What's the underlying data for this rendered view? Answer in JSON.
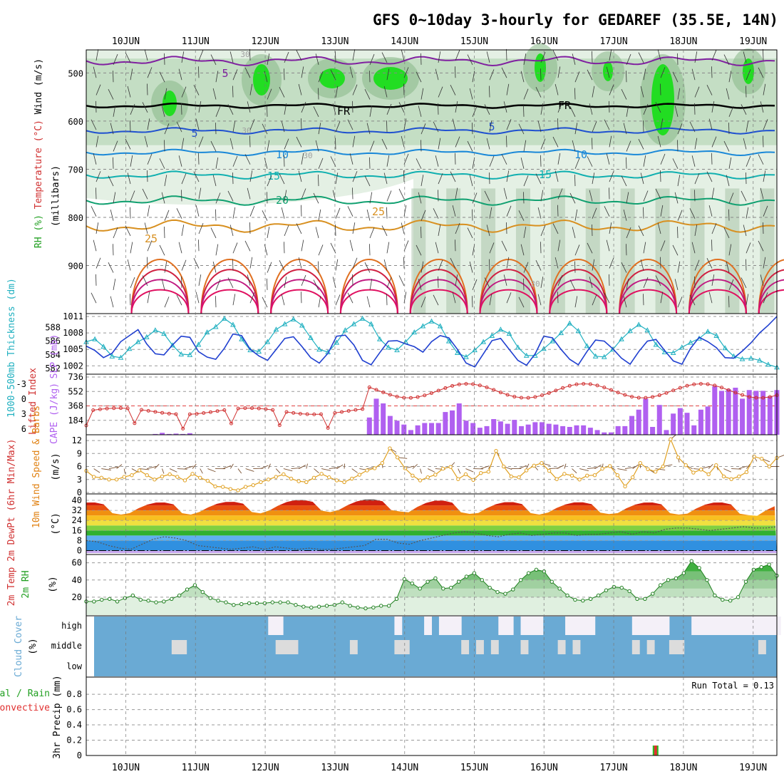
{
  "chart_data": {
    "type": "meteogram",
    "title": "GFS 0~10day 3-hourly for GEDAREF (35.5E, 14N)",
    "dates": [
      "10JUN",
      "11JUN",
      "12JUN",
      "13JUN",
      "14JUN",
      "15JUN",
      "16JUN",
      "17JUN",
      "18JUN",
      "19JUN"
    ],
    "colors": {
      "rh_green": "#22c022",
      "temp_red": "#d03030",
      "wind_purple": "#7a1fa0",
      "slp_blue": "#1f3fd0",
      "thick_cyan": "#20b0c0",
      "cape_violet": "#b060f0",
      "wind_orange": "#e0a020",
      "cloud_blue": "#6aaad4",
      "precip_green": "#22c022",
      "precip_red": "#e03030"
    },
    "upper": {
      "ylabel_rh": "RH (%)",
      "ylabel_temp": "Temperature (°C)",
      "ylabel_wind": "Wind (m/s)",
      "ylabel_p": "(millibars)",
      "p_ticks": [
        500,
        600,
        700,
        800,
        900
      ],
      "p_range": [
        452,
        1000
      ],
      "contour_labels": [
        {
          "t": "5",
          "c": "#8020a0"
        },
        {
          "t": "FR",
          "c": "#000000"
        },
        {
          "t": "FR",
          "c": "#000000"
        },
        {
          "t": "5",
          "c": "#1f50d0"
        },
        {
          "t": "5",
          "c": "#1f50d0"
        },
        {
          "t": "10",
          "c": "#1a88d8"
        },
        {
          "t": "10",
          "c": "#1a88d8"
        },
        {
          "t": "15",
          "c": "#10b0b0"
        },
        {
          "t": "15",
          "c": "#10b0b0"
        },
        {
          "t": "20",
          "c": "#10a070"
        },
        {
          "t": "25",
          "c": "#d89020"
        },
        {
          "t": "25",
          "c": "#d89020"
        },
        {
          "t": "30",
          "c": "#a0a0a0"
        },
        {
          "t": "30",
          "c": "#a0a0a0"
        },
        {
          "t": "30",
          "c": "#a0a0a0"
        },
        {
          "t": "30",
          "c": "#a0a0a0"
        }
      ]
    },
    "slp_panel": {
      "ylabel_thick": "1000-500mb Thickness (dm)",
      "ylabel_slp": "SLP (mb)",
      "left_ticks": [
        582,
        584,
        586,
        588
      ],
      "right_ticks": [
        1002,
        1005,
        1008,
        1011
      ],
      "slp_range": [
        1001,
        1011
      ],
      "slp": [
        1005.6,
        1004.8,
        1003.5,
        1004.3,
        1006.4,
        1007.5,
        1008.6,
        1006.0,
        1004.2,
        1004.0,
        1005.8,
        1007.4,
        1007.2,
        1004.6,
        1003.6,
        1003.2,
        1005.2,
        1007.8,
        1007.5,
        1005.0,
        1003.8,
        1003.0,
        1005.0,
        1007.0,
        1007.3,
        1005.5,
        1003.5,
        1002.5,
        1004.3,
        1007.4,
        1007.6,
        1005.8,
        1003.0,
        1002.2,
        1004.4,
        1006.5,
        1006.6,
        1006.0,
        1005.5,
        1004.5,
        1006.4,
        1007.5,
        1007.1,
        1005.0,
        1002.5,
        1001.8,
        1004.2,
        1006.6,
        1007.0,
        1005.0,
        1003.0,
        1002.1,
        1004.2,
        1007.4,
        1007.1,
        1005.0,
        1003.2,
        1002.2,
        1004.6,
        1006.7,
        1006.5,
        1005.1,
        1003.4,
        1002.3,
        1004.6,
        1006.5,
        1006.8,
        1004.8,
        1002.9,
        1002.3,
        1005.2,
        1007.2,
        1006.4,
        1005.3,
        1003.5,
        1003.4,
        1004.7,
        1006.2,
        1008.0,
        1009.4,
        1011.0
      ],
      "thick_dm": [
        585.9,
        586.3,
        585.2,
        583.8,
        583.6,
        584.9,
        585.9,
        586.6,
        587.6,
        587.1,
        585.4,
        584.1,
        584.0,
        585.5,
        587.3,
        588.1,
        589.3,
        588.4,
        586.3,
        584.7,
        584.5,
        585.9,
        587.7,
        588.5,
        589.2,
        588.3,
        586.5,
        584.8,
        584.4,
        585.8,
        587.6,
        588.5,
        589.3,
        588.5,
        586.3,
        585.1,
        584.7,
        585.9,
        587.3,
        588.2,
        588.9,
        588.2,
        586.0,
        584.3,
        583.7,
        584.7,
        585.9,
        586.8,
        587.7,
        587.1,
        585.1,
        583.9,
        583.9,
        584.9,
        586.0,
        587.2,
        588.6,
        587.5,
        585.3,
        583.8,
        583.7,
        584.8,
        586.3,
        587.5,
        588.4,
        587.6,
        585.5,
        584.4,
        584.3,
        585.1,
        585.8,
        586.4,
        587.4,
        586.8,
        585.0,
        583.8,
        583.4,
        583.5,
        583.2,
        582.6,
        582.2
      ]
    },
    "cape_panel": {
      "ylabel_li": "Lifted Index",
      "ylabel_cape": "CAPE (J/kg)",
      "left_ticks": [
        "-3",
        "0",
        "3",
        "6"
      ],
      "right_ticks": [
        184,
        368,
        552,
        736
      ],
      "cape": [
        0,
        0,
        0,
        0,
        0,
        0,
        0,
        0,
        0,
        0,
        10,
        25,
        10,
        15,
        10,
        20,
        0,
        0,
        0,
        0,
        0,
        0,
        0,
        0,
        0,
        0,
        0,
        0,
        0,
        0,
        0,
        0,
        0,
        0,
        0,
        0,
        0,
        0,
        0,
        0,
        0,
        220,
        460,
        400,
        240,
        180,
        130,
        60,
        120,
        150,
        150,
        150,
        290,
        310,
        400,
        180,
        150,
        90,
        110,
        200,
        170,
        140,
        190,
        110,
        130,
        160,
        160,
        140,
        130,
        110,
        100,
        120,
        120,
        90,
        60,
        30,
        30,
        110,
        110,
        240,
        320,
        460,
        100,
        380,
        60,
        270,
        340,
        280,
        120,
        320,
        360,
        620,
        560,
        580,
        600,
        460,
        570,
        560,
        560,
        490,
        570
      ]
    },
    "wind10_panel": {
      "ylabel": "10m Wind Speed & Barbs",
      "unit": "(m/s)",
      "ticks": [
        0,
        3,
        6,
        9,
        12
      ],
      "speed": [
        5.0,
        3.6,
        3.4,
        3.0,
        3.0,
        3.6,
        4.0,
        5.1,
        4.0,
        3.0,
        3.7,
        4.2,
        3.6,
        2.8,
        4.3,
        3.4,
        2.7,
        1.4,
        1.3,
        0.8,
        0.5,
        1.3,
        1.7,
        2.4,
        3.0,
        3.6,
        4.2,
        3.2,
        2.6,
        2.4,
        3.4,
        4.3,
        3.5,
        2.8,
        2.4,
        3.2,
        4.1,
        5.1,
        5.6,
        6.8,
        10.2,
        8.1,
        5.6,
        3.9,
        2.8,
        3.5,
        4.1,
        5.5,
        5.9,
        3.1,
        4.2,
        2.9,
        4.5,
        4.8,
        9.6,
        6.0,
        3.7,
        3.5,
        5.1,
        6.2,
        6.8,
        5.0,
        3.1,
        4.3,
        3.9,
        3.0,
        3.9,
        4.0,
        5.5,
        6.1,
        4.0,
        1.4,
        3.5,
        6.8,
        5.4,
        4.8,
        6.0,
        12.3,
        8.1,
        6.3,
        4.6,
        5.3,
        4.2,
        6.3,
        3.7,
        3.1,
        3.7,
        4.7,
        8.3,
        7.8,
        6.0,
        8.0
      ]
    },
    "temp_panel": {
      "ylabel": "2m Temp 2m DewPt (6hr Min/Max)",
      "unit": "(°C)",
      "ticks": [
        0,
        8,
        16,
        24,
        32,
        40
      ],
      "temp_max_daily": [
        38.5,
        39.0,
        40.5,
        41.0,
        40.0,
        38.8,
        38.6,
        38.5,
        38.5,
        37.5
      ],
      "temp_min_daily": [
        28.0,
        29.0,
        30.0,
        30.5,
        28.5,
        28.0,
        28.5,
        28.0,
        27.5,
        25.5
      ],
      "dewpt": [
        8,
        7,
        4,
        2,
        1,
        5,
        9,
        11,
        10,
        8,
        4,
        3,
        2,
        1,
        2,
        3,
        1,
        3,
        2,
        1,
        2,
        1,
        1,
        2,
        3,
        4,
        9,
        9,
        6,
        5,
        8,
        10,
        12,
        14,
        15,
        14,
        12,
        11,
        13,
        14,
        12,
        13,
        14,
        14,
        12,
        13,
        13,
        14,
        15,
        13,
        15,
        14,
        17,
        18,
        18,
        17,
        16,
        17,
        18,
        19,
        18,
        18,
        19
      ]
    },
    "rh_panel": {
      "ylabel": "2m RH",
      "unit": "(%)",
      "ticks": [
        20,
        40,
        60
      ],
      "rh": [
        15,
        15,
        17,
        18,
        15,
        19,
        22,
        17,
        16,
        14,
        15,
        18,
        22,
        29,
        34,
        26,
        19,
        16,
        14,
        11,
        12,
        13,
        13,
        13,
        14,
        14,
        14,
        11,
        9,
        8,
        9,
        10,
        11,
        14,
        10,
        8,
        7,
        8,
        10,
        10,
        18,
        41,
        36,
        30,
        38,
        42,
        30,
        31,
        38,
        44,
        48,
        40,
        31,
        26,
        24,
        29,
        40,
        48,
        52,
        50,
        38,
        30,
        22,
        17,
        16,
        18,
        22,
        28,
        32,
        31,
        27,
        18,
        18,
        24,
        34,
        40,
        42,
        48,
        62,
        54,
        40,
        22,
        17,
        16,
        20,
        38,
        52,
        55,
        58,
        45
      ]
    },
    "cloud_panel": {
      "ylabel": "Cloud Cover",
      "unit": "(%)",
      "level_labels": [
        "high",
        "middle",
        "low"
      ],
      "high": [
        0,
        0,
        0,
        0,
        0,
        0,
        0,
        0,
        0,
        0,
        0,
        0,
        0,
        0,
        0,
        0,
        0,
        0,
        0,
        0,
        0,
        0,
        0,
        0,
        0,
        1,
        1,
        0,
        0,
        0,
        0,
        0,
        0,
        0,
        0,
        0,
        0,
        0,
        0,
        0,
        0,
        0,
        1,
        0,
        0,
        0,
        1,
        0,
        1,
        1,
        1,
        0,
        0,
        0,
        0,
        0,
        1,
        1,
        0,
        1,
        1,
        1,
        0,
        0,
        0,
        1,
        1,
        1,
        1,
        0,
        0,
        0,
        0,
        0,
        1,
        1,
        1,
        1,
        1,
        0,
        0,
        0,
        1,
        1,
        1,
        1,
        1,
        1,
        1,
        1,
        1,
        1,
        1,
        1
      ],
      "middle": [
        0,
        0,
        0,
        0,
        0,
        0,
        0,
        0,
        0,
        0,
        0,
        0,
        1,
        1,
        0,
        0,
        0,
        0,
        0,
        0,
        0,
        0,
        0,
        0,
        0,
        0,
        1,
        1,
        1,
        0,
        0,
        0,
        0,
        0,
        0,
        0,
        1,
        0,
        0,
        0,
        0,
        0,
        1,
        1,
        0,
        0,
        0,
        0,
        0,
        0,
        0,
        1,
        0,
        1,
        0,
        1,
        0,
        0,
        0,
        1,
        0,
        0,
        0,
        0,
        1,
        0,
        1,
        0,
        0,
        0,
        0,
        0,
        0,
        0,
        1,
        0,
        1,
        0,
        0,
        1,
        1,
        0,
        0,
        0,
        0,
        0,
        0,
        0,
        0,
        0,
        0,
        1,
        0,
        0
      ]
    },
    "precip_panel": {
      "ylabel": "3hr Precip (mm)",
      "legend_total": "Total / Rain",
      "legend_conv": "Convective",
      "run_total": "Run Total = 0.13",
      "ticks": [
        "0",
        "0.2",
        "0.4",
        "0.6",
        "0.8"
      ],
      "events": [
        {
          "day": 7.6,
          "total": 0.13,
          "convective": 0.13
        }
      ]
    }
  }
}
